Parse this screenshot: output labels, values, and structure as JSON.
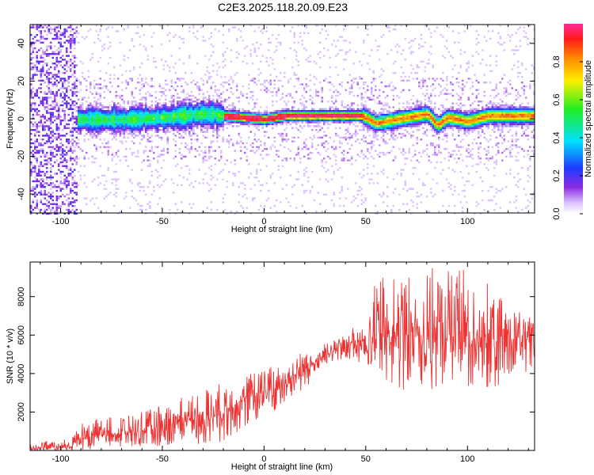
{
  "title": "C2E3.2025.118.20.09.E23",
  "chart_data": [
    {
      "type": "heatmap",
      "xlabel": "Height of straight line (km)",
      "ylabel": "Frequency (Hz)",
      "xlim": [
        -115,
        133
      ],
      "ylim": [
        -50,
        50
      ],
      "x_ticks": [
        -100,
        -50,
        0,
        50,
        100
      ],
      "x_tick_labels": [
        "-100",
        "-50",
        "0",
        "50",
        "100"
      ],
      "y_ticks": [
        -40,
        -20,
        0,
        20,
        40
      ],
      "y_tick_labels": [
        "-40",
        "-20",
        "0",
        "20",
        "40"
      ],
      "colorbar": {
        "label": "Normalized spectral amplitude",
        "range": [
          0,
          1
        ],
        "ticks": [
          0.0,
          0.2,
          0.4,
          0.6,
          0.8
        ],
        "tick_labels": [
          "0.0",
          "0.2",
          "0.4",
          "0.6",
          "0.8"
        ],
        "colormap": "rainbow (white-violet-blue-cyan-green-yellow-orange-red-magenta)"
      },
      "ridge_frequency_hz": [
        {
          "x": -90,
          "y": 0
        },
        {
          "x": -70,
          "y": 0
        },
        {
          "x": -50,
          "y": 1
        },
        {
          "x": -30,
          "y": 3
        },
        {
          "x": -20,
          "y": 2
        },
        {
          "x": 0,
          "y": 0
        },
        {
          "x": 10,
          "y": 2
        },
        {
          "x": 30,
          "y": 2
        },
        {
          "x": 48,
          "y": 2
        },
        {
          "x": 55,
          "y": -2
        },
        {
          "x": 65,
          "y": 0
        },
        {
          "x": 75,
          "y": 2
        },
        {
          "x": 80,
          "y": 3
        },
        {
          "x": 85,
          "y": -3
        },
        {
          "x": 90,
          "y": 1
        },
        {
          "x": 100,
          "y": -1
        },
        {
          "x": 110,
          "y": 2
        },
        {
          "x": 120,
          "y": 2
        },
        {
          "x": 133,
          "y": 2
        }
      ],
      "grid": false
    },
    {
      "type": "line",
      "xlabel": "Height of straight line (km)",
      "ylabel": "SNR (10 * v/v)",
      "xlim": [
        -115,
        133
      ],
      "ylim": [
        0,
        9800
      ],
      "x_ticks": [
        -100,
        -50,
        0,
        50,
        100
      ],
      "x_tick_labels": [
        "-100",
        "-50",
        "0",
        "50",
        "100"
      ],
      "y_ticks": [
        2000,
        4000,
        6000,
        8000
      ],
      "y_tick_labels": [
        "2000",
        "4000",
        "6000",
        "8000"
      ],
      "series": [
        {
          "color": "#ee3333",
          "envelope": [
            {
              "x": -115,
              "low": 0,
              "mid": 100,
              "high": 400
            },
            {
              "x": -95,
              "low": 0,
              "mid": 200,
              "high": 600
            },
            {
              "x": -90,
              "low": 0,
              "mid": 700,
              "high": 1500
            },
            {
              "x": -80,
              "low": 100,
              "mid": 800,
              "high": 1700
            },
            {
              "x": -60,
              "low": 200,
              "mid": 1000,
              "high": 2000
            },
            {
              "x": -40,
              "low": 300,
              "mid": 1500,
              "high": 2800
            },
            {
              "x": -20,
              "low": 400,
              "mid": 2000,
              "high": 3600
            },
            {
              "x": -10,
              "low": 1200,
              "mid": 2700,
              "high": 4000
            },
            {
              "x": 0,
              "low": 1800,
              "mid": 3000,
              "high": 4300
            },
            {
              "x": 10,
              "low": 2200,
              "mid": 3500,
              "high": 4600
            },
            {
              "x": 20,
              "low": 3200,
              "mid": 4200,
              "high": 5300
            },
            {
              "x": 30,
              "low": 4200,
              "mid": 4900,
              "high": 5600
            },
            {
              "x": 40,
              "low": 4800,
              "mid": 5500,
              "high": 6000
            },
            {
              "x": 50,
              "low": 4500,
              "mid": 5800,
              "high": 7000
            },
            {
              "x": 55,
              "low": 4000,
              "mid": 5900,
              "high": 9500
            },
            {
              "x": 70,
              "low": 3000,
              "mid": 6000,
              "high": 9000
            },
            {
              "x": 90,
              "low": 3000,
              "mid": 6000,
              "high": 9800
            },
            {
              "x": 110,
              "low": 3200,
              "mid": 5900,
              "high": 8800
            },
            {
              "x": 120,
              "low": 3000,
              "mid": 5800,
              "high": 7500
            },
            {
              "x": 133,
              "low": 4500,
              "mid": 5800,
              "high": 7000
            }
          ]
        }
      ],
      "grid": false
    }
  ]
}
